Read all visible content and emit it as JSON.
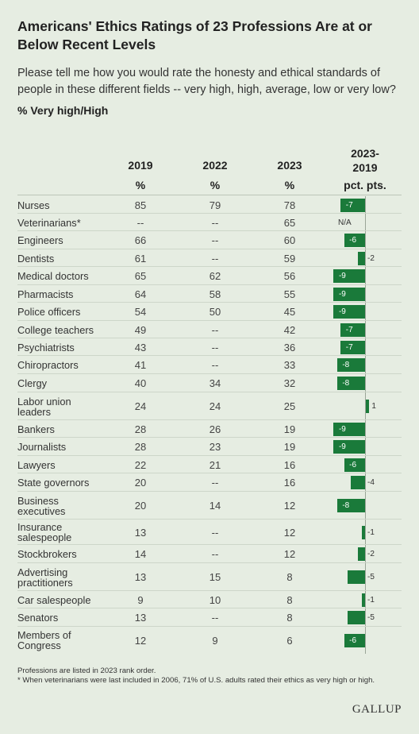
{
  "title": "Americans' Ethics Ratings of 23 Professions Are at or Below Recent Levels",
  "subtitle": "Please tell me how you would rate the honesty and ethical standards of people in these different fields -- very high, high, average, low or very low?",
  "measure": "% Very high/High",
  "columns": {
    "y2019": "2019",
    "y2022": "2022",
    "y2023": "2023",
    "change_line1": "2023-",
    "change_line2": "2019",
    "unit": "%",
    "change_unit": "pct. pts."
  },
  "footnote_1": "Professions are listed in 2023 rank order.",
  "footnote_2": "* When veterinarians were last included in 2006, 71% of U.S. adults rated their ethics as very high or high.",
  "source": "GALLUP",
  "colors": {
    "background": "#e6ede2",
    "bar": "#1a7a3a"
  },
  "chart_data": {
    "type": "table",
    "columns": [
      "2019",
      "2022",
      "2023",
      "2023-2019"
    ],
    "rows": [
      {
        "profession": "Nurses",
        "y2019": "85",
        "y2022": "79",
        "y2023": "78",
        "change": -7
      },
      {
        "profession": "Veterinarians*",
        "y2019": "--",
        "y2022": "--",
        "y2023": "65",
        "change": null,
        "change_text": "N/A"
      },
      {
        "profession": "Engineers",
        "y2019": "66",
        "y2022": "--",
        "y2023": "60",
        "change": -6
      },
      {
        "profession": "Dentists",
        "y2019": "61",
        "y2022": "--",
        "y2023": "59",
        "change": -2
      },
      {
        "profession": "Medical doctors",
        "y2019": "65",
        "y2022": "62",
        "y2023": "56",
        "change": -9
      },
      {
        "profession": "Pharmacists",
        "y2019": "64",
        "y2022": "58",
        "y2023": "55",
        "change": -9
      },
      {
        "profession": "Police officers",
        "y2019": "54",
        "y2022": "50",
        "y2023": "45",
        "change": -9
      },
      {
        "profession": "College teachers",
        "y2019": "49",
        "y2022": "--",
        "y2023": "42",
        "change": -7
      },
      {
        "profession": "Psychiatrists",
        "y2019": "43",
        "y2022": "--",
        "y2023": "36",
        "change": -7
      },
      {
        "profession": "Chiropractors",
        "y2019": "41",
        "y2022": "--",
        "y2023": "33",
        "change": -8
      },
      {
        "profession": "Clergy",
        "y2019": "40",
        "y2022": "34",
        "y2023": "32",
        "change": -8
      },
      {
        "profession": "Labor union leaders",
        "label_lines": [
          "Labor union",
          "leaders"
        ],
        "y2019": "24",
        "y2022": "24",
        "y2023": "25",
        "change": 1
      },
      {
        "profession": "Bankers",
        "y2019": "28",
        "y2022": "26",
        "y2023": "19",
        "change": -9
      },
      {
        "profession": "Journalists",
        "y2019": "28",
        "y2022": "23",
        "y2023": "19",
        "change": -9
      },
      {
        "profession": "Lawyers",
        "y2019": "22",
        "y2022": "21",
        "y2023": "16",
        "change": -6
      },
      {
        "profession": "State governors",
        "y2019": "20",
        "y2022": "--",
        "y2023": "16",
        "change": -4
      },
      {
        "profession": "Business executives",
        "label_lines": [
          "Business",
          "executives"
        ],
        "y2019": "20",
        "y2022": "14",
        "y2023": "12",
        "change": -8
      },
      {
        "profession": "Insurance salespeople",
        "label_lines": [
          "Insurance",
          "salespeople"
        ],
        "y2019": "13",
        "y2022": "--",
        "y2023": "12",
        "change": -1
      },
      {
        "profession": "Stockbrokers",
        "y2019": "14",
        "y2022": "--",
        "y2023": "12",
        "change": -2
      },
      {
        "profession": "Advertising practitioners",
        "label_lines": [
          "Advertising",
          "practitioners"
        ],
        "y2019": "13",
        "y2022": "15",
        "y2023": "8",
        "change": -5
      },
      {
        "profession": "Car salespeople",
        "y2019": "9",
        "y2022": "10",
        "y2023": "8",
        "change": -1
      },
      {
        "profession": "Senators",
        "y2019": "13",
        "y2022": "--",
        "y2023": "8",
        "change": -5
      },
      {
        "profession": "Members of Congress",
        "label_lines": [
          "Members of",
          "Congress"
        ],
        "y2019": "12",
        "y2022": "9",
        "y2023": "6",
        "change": -6
      }
    ]
  }
}
